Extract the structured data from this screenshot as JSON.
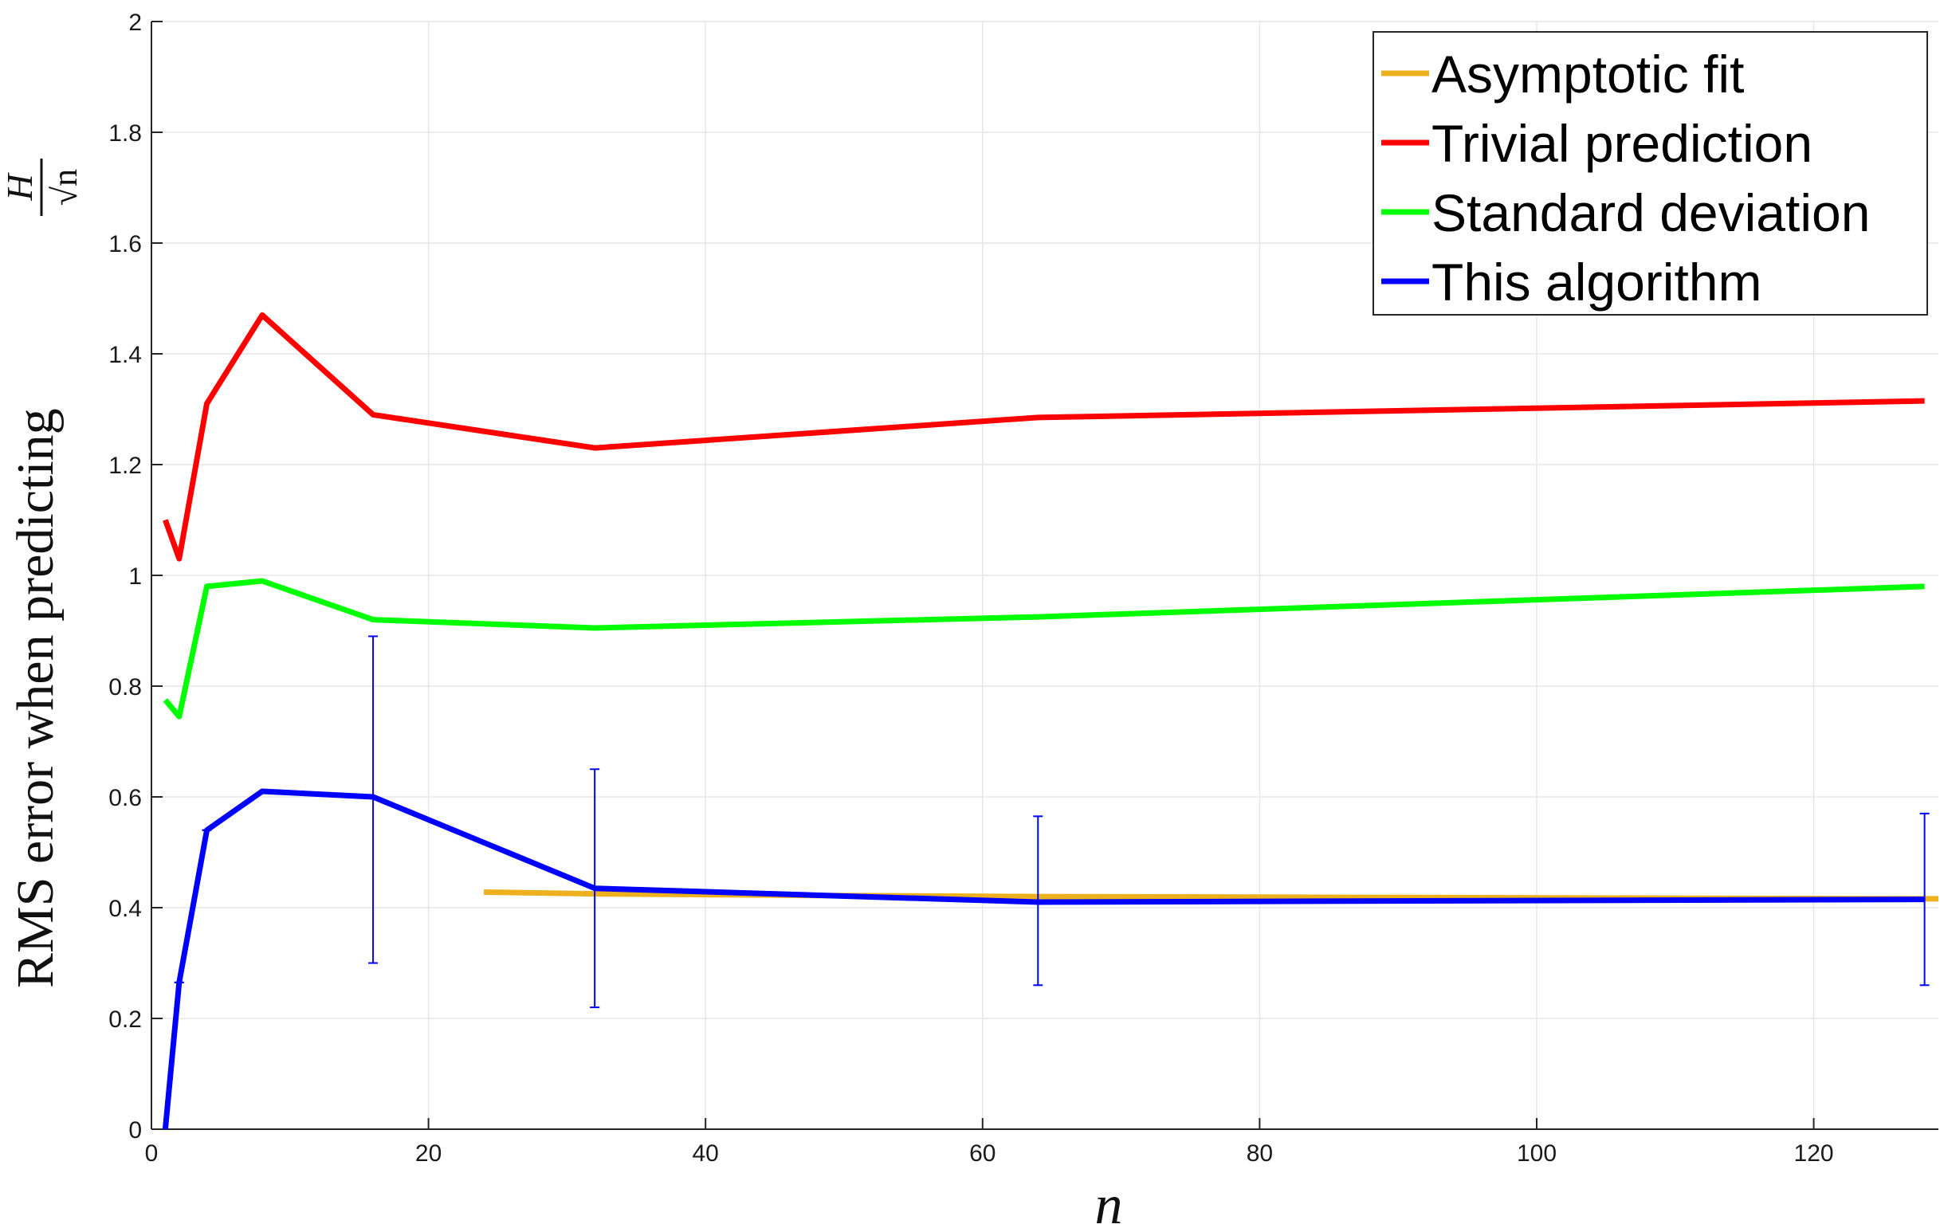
{
  "chart_data": {
    "type": "line",
    "xlabel": "n",
    "ylabel": "RMS error when predicting",
    "ylabel_math": {
      "numerator": "H",
      "denominator": "√n"
    },
    "xlim": [
      0,
      129
    ],
    "ylim": [
      0,
      2
    ],
    "xticks": [
      0,
      20,
      40,
      60,
      80,
      100,
      120
    ],
    "yticks": [
      0,
      0.2,
      0.4,
      0.6,
      0.8,
      1,
      1.2,
      1.4,
      1.6,
      1.8,
      2
    ],
    "xtick_labels": [
      "0",
      "20",
      "40",
      "60",
      "80",
      "100",
      "120"
    ],
    "ytick_labels": [
      "0",
      "0.2",
      "0.4",
      "0.6",
      "0.8",
      "1",
      "1.2",
      "1.4",
      "1.6",
      "1.8",
      "2"
    ],
    "grid": true,
    "legend_position": "top-right",
    "series": [
      {
        "name": "Asymptotic fit",
        "color": "#EDB120",
        "x": [
          24,
          32,
          48,
          64,
          80,
          96,
          112,
          128,
          129
        ],
        "y": [
          0.428,
          0.425,
          0.422,
          0.42,
          0.419,
          0.418,
          0.417,
          0.416,
          0.416
        ]
      },
      {
        "name": "Trivial prediction",
        "color": "#FF0000",
        "x": [
          1,
          2,
          4,
          8,
          16,
          32,
          64,
          128
        ],
        "y": [
          1.1,
          1.03,
          1.31,
          1.47,
          1.29,
          1.23,
          1.285,
          1.315
        ]
      },
      {
        "name": "Standard deviation",
        "color": "#00FF00",
        "x": [
          1,
          2,
          4,
          8,
          16,
          32,
          64,
          128
        ],
        "y": [
          0.775,
          0.745,
          0.98,
          0.99,
          0.92,
          0.905,
          0.925,
          0.98
        ]
      },
      {
        "name": "This algorithm",
        "color": "#0000FF",
        "x": [
          1,
          2,
          4,
          8,
          16,
          32,
          64,
          128
        ],
        "y": [
          0.0,
          0.265,
          0.54,
          0.61,
          0.6,
          0.435,
          0.41,
          0.415
        ],
        "error_bars": [
          {
            "x": 2,
            "low": 0.265,
            "high": 0.265
          },
          {
            "x": 4,
            "low": 0.54,
            "high": 0.54
          },
          {
            "x": 16,
            "low": 0.3,
            "high": 0.89
          },
          {
            "x": 32,
            "low": 0.22,
            "high": 0.65
          },
          {
            "x": 64,
            "low": 0.26,
            "high": 0.565
          },
          {
            "x": 128,
            "low": 0.26,
            "high": 0.57
          }
        ]
      }
    ]
  }
}
